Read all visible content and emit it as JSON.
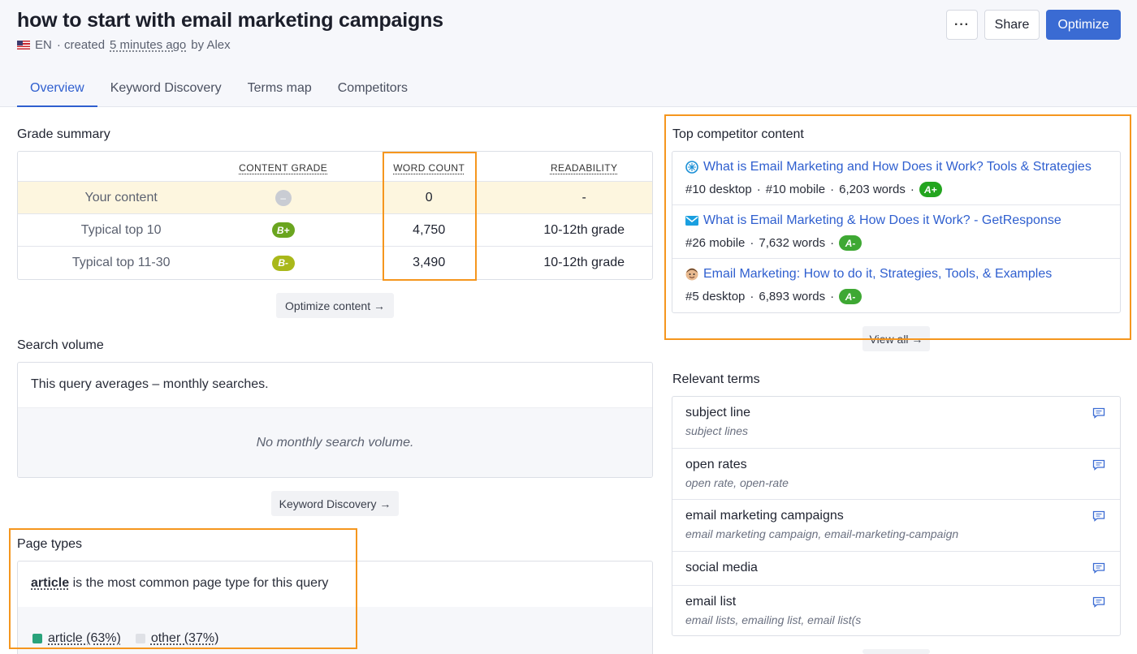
{
  "header": {
    "title": "how to start with email marketing campaigns",
    "language": "EN",
    "created_prefix": "· created",
    "created_time": "5 minutes ago",
    "created_suffix": "by Alex",
    "more_label": "···",
    "share_label": "Share",
    "optimize_label": "Optimize"
  },
  "tabs": [
    {
      "label": "Overview",
      "active": true
    },
    {
      "label": "Keyword Discovery",
      "active": false
    },
    {
      "label": "Terms map",
      "active": false
    },
    {
      "label": "Competitors",
      "active": false
    }
  ],
  "grade_summary": {
    "title": "Grade summary",
    "columns": [
      "",
      "CONTENT GRADE",
      "WORD COUNT",
      "READABILITY"
    ],
    "rows": [
      {
        "label": "Your content",
        "grade": "–",
        "grade_color": "#c9ccd3",
        "word_count": "0",
        "readability": "-"
      },
      {
        "label": "Typical top 10",
        "grade": "B+",
        "grade_color": "#6aa51f",
        "word_count": "4,750",
        "readability": "10-12th grade"
      },
      {
        "label": "Typical top 11-30",
        "grade": "B-",
        "grade_color": "#a9b81a",
        "word_count": "3,490",
        "readability": "10-12th grade"
      }
    ],
    "button_label": "Optimize content →"
  },
  "search_volume": {
    "title": "Search volume",
    "summary": "This query averages – monthly searches.",
    "empty_message": "No monthly search volume.",
    "button_label": "Keyword Discovery →"
  },
  "page_types": {
    "title": "Page types",
    "lead_type": "article",
    "lead_text": "is the most common page type for this query",
    "legend": [
      {
        "label": "article (63%)",
        "color": "#2aa37b",
        "percent": 63
      },
      {
        "label": "other (37%)",
        "color": "#dfe1e6",
        "percent": 37
      }
    ]
  },
  "top_competitors": {
    "title": "Top competitor content",
    "items": [
      {
        "title": "What is Email Marketing and How Does it Work? Tools & Strategies",
        "favicon": "spiral-logo-icon",
        "rank_desktop": "#10 desktop",
        "rank_mobile": "#10 mobile",
        "words": "6,203 words",
        "grade": "A+",
        "grade_color": "#23a51f"
      },
      {
        "title": "What is Email Marketing & How Does it Work? - GetResponse",
        "favicon": "envelope-logo-icon",
        "rank_desktop": "",
        "rank_mobile": "#26 mobile",
        "words": "7,632 words",
        "grade": "A-",
        "grade_color": "#3ea833"
      },
      {
        "title": "Email Marketing: How to do it, Strategies, Tools, & Examples",
        "favicon": "face-logo-icon",
        "rank_desktop": "#5 desktop",
        "rank_mobile": "",
        "words": "6,893 words",
        "grade": "A-",
        "grade_color": "#3ea833"
      }
    ],
    "view_all_label": "View all →"
  },
  "relevant_terms": {
    "title": "Relevant terms",
    "items": [
      {
        "name": "subject line",
        "variants": "subject lines"
      },
      {
        "name": "open rates",
        "variants": "open rate, open-rate"
      },
      {
        "name": "email marketing campaigns",
        "variants": "email marketing campaign, email-marketing-campaign"
      },
      {
        "name": "social media",
        "variants": ""
      },
      {
        "name": "email list",
        "variants": "email lists, emailing list, email list(s"
      }
    ]
  },
  "colors": {
    "accent": "#3a6bd3",
    "link": "#2f5fcf",
    "highlight_box": "#f5961e",
    "your_content_row": "#fdf6df"
  }
}
